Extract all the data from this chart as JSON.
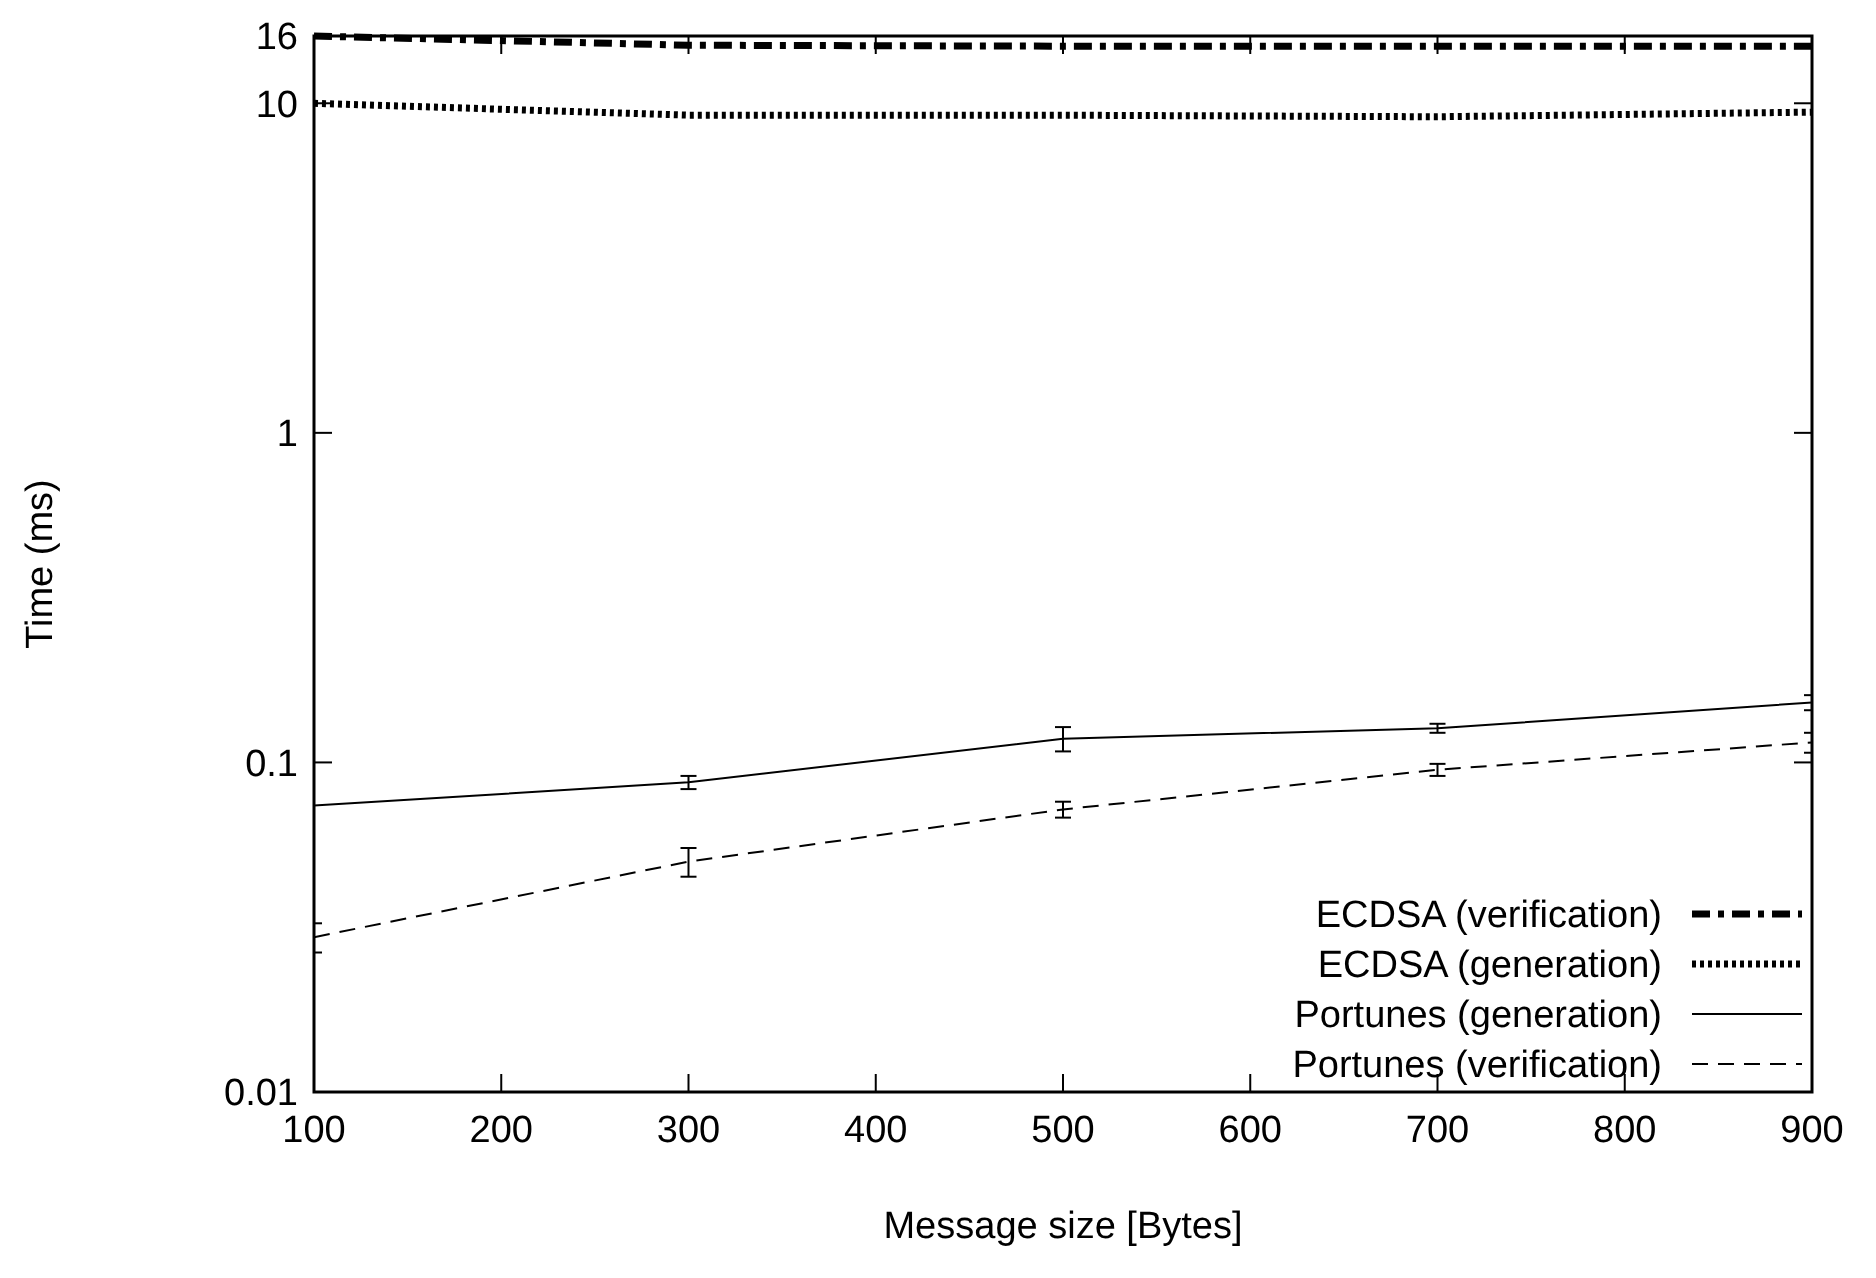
{
  "chart_data": {
    "type": "line",
    "xlabel": "Message size [Bytes]",
    "ylabel": "Time (ms)",
    "x": [
      100,
      300,
      500,
      700,
      900
    ],
    "xlim": [
      100,
      900
    ],
    "xticks": [
      100,
      200,
      300,
      400,
      500,
      600,
      700,
      800,
      900
    ],
    "ylim": [
      0.01,
      16
    ],
    "yticks": [
      0.01,
      0.1,
      1,
      10,
      16
    ],
    "log": "y",
    "grid": false,
    "legend": "bottom right",
    "series": [
      {
        "name": "ECDSA (verification)",
        "color": "#000000",
        "line_style": "dashdot",
        "values": [
          16,
          15,
          14.9,
          14.9,
          14.9
        ]
      },
      {
        "name": "ECDSA (generation)",
        "color": "#000000",
        "line_style": "dotted",
        "values": [
          10,
          9.2,
          9.2,
          9.1,
          9.4
        ]
      },
      {
        "name": "Portunes (generation)",
        "color": "#000000",
        "line_style": "solid",
        "values": [
          0.074,
          0.087,
          0.118,
          0.127,
          0.152
        ],
        "errors": [
          null,
          0.004,
          0.01,
          0.004,
          0.008
        ]
      },
      {
        "name": "Portunes (verification)",
        "color": "#000000",
        "line_style": "dashed",
        "values": [
          0.0295,
          0.05,
          0.072,
          0.095,
          0.115
        ],
        "errors": [
          0.003,
          0.005,
          0.004,
          0.004,
          0.008
        ]
      }
    ]
  }
}
